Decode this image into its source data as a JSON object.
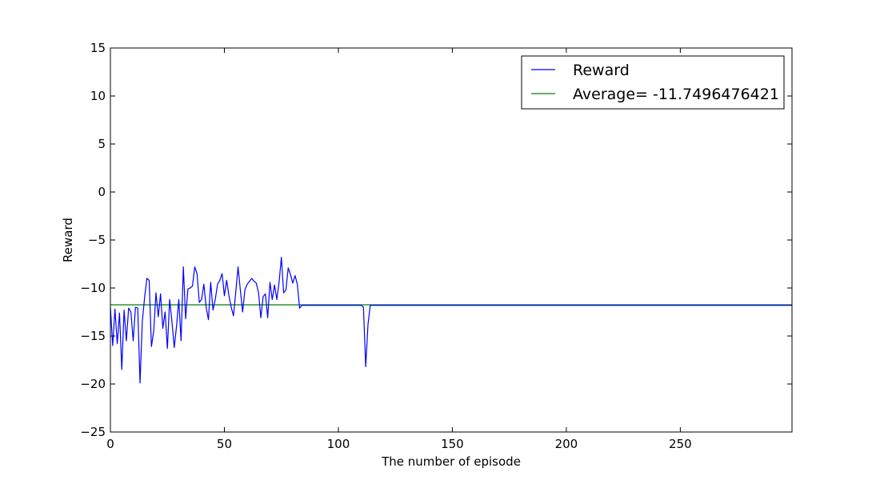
{
  "chart_data": {
    "type": "line",
    "xlabel": "The number of episode",
    "ylabel": "Reward",
    "xlim": [
      0,
      299
    ],
    "ylim": [
      -25,
      15
    ],
    "xticks": [
      0,
      50,
      100,
      150,
      200,
      250
    ],
    "yticks": [
      -25,
      -20,
      -15,
      -10,
      -5,
      0,
      5,
      10,
      15
    ],
    "ytick_labels": [
      "−25",
      "−20",
      "−15",
      "−10",
      "−5",
      "0",
      "5",
      "10",
      "15"
    ],
    "legend_position": "top-right",
    "grid": false,
    "series": [
      {
        "name": "Reward",
        "color": "#0000ff",
        "x": [
          0,
          1,
          2,
          3,
          4,
          5,
          6,
          7,
          8,
          9,
          10,
          11,
          12,
          13,
          14,
          15,
          16,
          17,
          18,
          19,
          20,
          21,
          22,
          23,
          24,
          25,
          26,
          27,
          28,
          29,
          30,
          31,
          32,
          33,
          34,
          35,
          36,
          37,
          38,
          39,
          40,
          41,
          42,
          43,
          44,
          45,
          46,
          47,
          48,
          49,
          50,
          51,
          52,
          53,
          54,
          55,
          56,
          57,
          58,
          59,
          60,
          61,
          62,
          63,
          64,
          65,
          66,
          67,
          68,
          69,
          70,
          71,
          72,
          73,
          74,
          75,
          76,
          77,
          78,
          79,
          80,
          81,
          82,
          83,
          84,
          85,
          86,
          87,
          88,
          89,
          90,
          91,
          92,
          93,
          94,
          95,
          96,
          97,
          98,
          99,
          100,
          101,
          102,
          103,
          104,
          105,
          106,
          107,
          108,
          109,
          110,
          111,
          112,
          113,
          114,
          115,
          116,
          117,
          118,
          119,
          120,
          130,
          140,
          150,
          160,
          170,
          180,
          190,
          200,
          210,
          220,
          230,
          240,
          250,
          260,
          270,
          280,
          290,
          299
        ],
        "y": [
          -12.0,
          -16.0,
          -12.2,
          -15.8,
          -12.6,
          -18.5,
          -12.3,
          -15.5,
          -12.1,
          -12.5,
          -15.5,
          -12.0,
          -12.1,
          -19.9,
          -13.5,
          -11.0,
          -9.0,
          -9.2,
          -16.1,
          -14.5,
          -10.5,
          -13.0,
          -10.6,
          -14.2,
          -12.5,
          -16.3,
          -11.2,
          -13.5,
          -16.2,
          -14.0,
          -11.2,
          -15.5,
          -7.8,
          -13.2,
          -10.1,
          -10.0,
          -9.8,
          -7.8,
          -8.5,
          -11.5,
          -11.2,
          -9.6,
          -12.0,
          -13.3,
          -9.4,
          -12.3,
          -11.2,
          -9.6,
          -9.2,
          -8.5,
          -10.8,
          -9.2,
          -10.8,
          -12.0,
          -12.9,
          -10.4,
          -7.8,
          -10.2,
          -12.5,
          -10.2,
          -9.6,
          -9.3,
          -9.0,
          -9.3,
          -9.5,
          -10.5,
          -13.1,
          -10.9,
          -10.6,
          -13.1,
          -9.4,
          -11.2,
          -9.7,
          -11.2,
          -9.4,
          -6.8,
          -10.5,
          -10.2,
          -7.9,
          -8.6,
          -9.5,
          -8.7,
          -9.6,
          -12.1,
          -11.8,
          -11.8,
          -11.8,
          -11.8,
          -11.8,
          -11.8,
          -11.8,
          -11.8,
          -11.8,
          -11.8,
          -11.8,
          -11.8,
          -11.8,
          -11.8,
          -11.8,
          -11.8,
          -11.8,
          -11.8,
          -11.8,
          -11.8,
          -11.8,
          -11.8,
          -11.8,
          -11.8,
          -11.8,
          -11.8,
          -11.8,
          -12.0,
          -18.2,
          -13.8,
          -11.8,
          -11.8,
          -11.8,
          -11.8,
          -11.8,
          -11.8,
          -11.8,
          -11.8,
          -11.8,
          -11.8,
          -11.8,
          -11.8,
          -11.8,
          -11.8,
          -11.8,
          -11.8,
          -11.8,
          -11.8,
          -11.8,
          -11.8,
          -11.8,
          -11.8,
          -11.8,
          -11.8,
          -11.8
        ]
      },
      {
        "name": "Average= -11.7496476421",
        "color": "#008000",
        "x": [
          0,
          299
        ],
        "y": [
          -11.7496476421,
          -11.7496476421
        ]
      }
    ]
  }
}
